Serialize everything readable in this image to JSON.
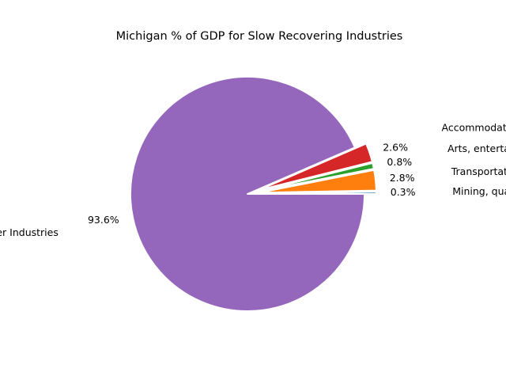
{
  "chart_data": {
    "type": "pie",
    "title": "Michigan % of GDP for Slow Recovering Industries",
    "slices": [
      {
        "label": "Mining, quarrying, and oil and gas extraction",
        "value": 0.3,
        "pct_label": "0.3%",
        "color": "#1f77b4",
        "exploded": true
      },
      {
        "label": "Transportation and warehousing",
        "value": 2.8,
        "pct_label": "2.8%",
        "color": "#ff7f0e",
        "exploded": true
      },
      {
        "label": "Arts, entertainment, and recreation",
        "value": 0.8,
        "pct_label": "0.8%",
        "color": "#2ca02c",
        "exploded": true
      },
      {
        "label": "Accommodation and food services",
        "value": 2.6,
        "pct_label": "2.6%",
        "color": "#d62728",
        "exploded": true
      },
      {
        "label": "Other Industries",
        "value": 93.6,
        "pct_label": "93.6%",
        "color": "#9467bd",
        "exploded": false
      }
    ]
  }
}
